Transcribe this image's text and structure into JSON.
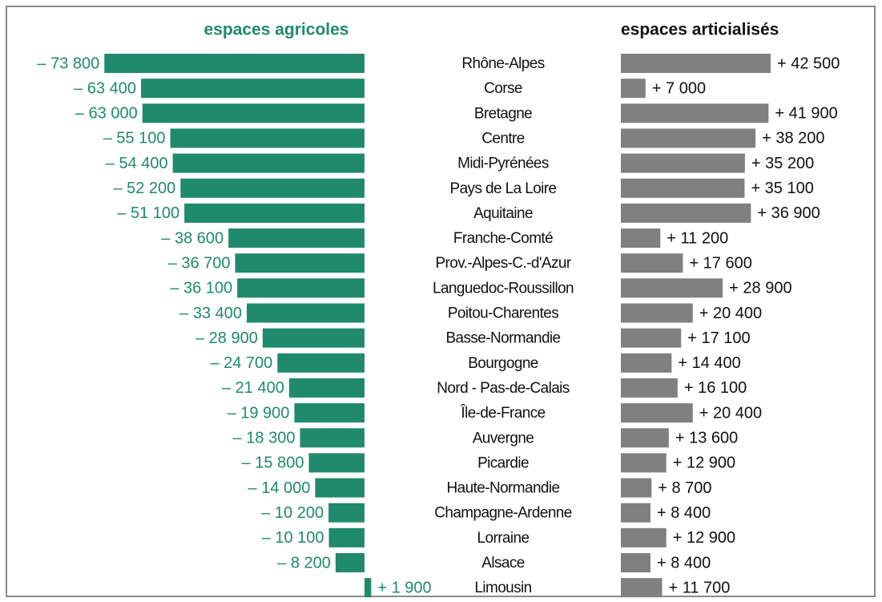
{
  "chart_data": {
    "type": "butterfly-bar",
    "categories": [
      "Rhône-Alpes",
      "Corse",
      "Bretagne",
      "Centre",
      "Midi-Pyrénées",
      "Pays de La Loire",
      "Aquitaine",
      "Franche-Comté",
      "Prov.-Alpes-C.-d'Azur",
      "Languedoc-Roussillon",
      "Poitou-Charentes",
      "Basse-Normandie",
      "Bourgogne",
      "Nord - Pas-de-Calais",
      "Île-de-France",
      "Auvergne",
      "Picardie",
      "Haute-Normandie",
      "Champagne-Ardenne",
      "Lorraine",
      "Alsace",
      "Limousin"
    ],
    "series": [
      {
        "name": "espaces agricoles",
        "color": "#1f8a6c",
        "values": [
          -73800,
          -63400,
          -63000,
          -55100,
          -54400,
          -52200,
          -51100,
          -38600,
          -36700,
          -36100,
          -33400,
          -28900,
          -24700,
          -21400,
          -19900,
          -18300,
          -15800,
          -14000,
          -10200,
          -10100,
          -8200,
          1900
        ],
        "value_labels": [
          "– 73 800",
          "– 63 400",
          "– 63 000",
          "– 55 100",
          "– 54 400",
          "– 52 200",
          "– 51 100",
          "– 38 600",
          "– 36 700",
          "– 36 100",
          "– 33 400",
          "– 28 900",
          "– 24 700",
          "– 21 400",
          "– 19 900",
          "– 18 300",
          "– 15 800",
          "– 14 000",
          "– 10 200",
          "– 10 100",
          "– 8 200",
          "+ 1 900"
        ]
      },
      {
        "name": "espaces articialisés",
        "color": "#808080",
        "values": [
          42500,
          7000,
          41900,
          38200,
          35200,
          35100,
          36900,
          11200,
          17600,
          28900,
          20400,
          17100,
          14400,
          16100,
          20400,
          13600,
          12900,
          8700,
          8400,
          12900,
          8400,
          11700
        ],
        "value_labels": [
          "+ 42 500",
          "+ 7 000",
          "+ 41 900",
          "+ 38 200",
          "+ 35 200",
          "+ 35 100",
          "+ 36 900",
          "+ 11 200",
          "+ 17 600",
          "+ 28 900",
          "+ 20 400",
          "+ 17 100",
          "+ 14 400",
          "+ 16 100",
          "+ 20 400",
          "+ 13 600",
          "+ 12 900",
          "+ 8 700",
          "+ 8 400",
          "+ 12 900",
          "+ 8 400",
          "+ 11 700"
        ]
      }
    ]
  }
}
